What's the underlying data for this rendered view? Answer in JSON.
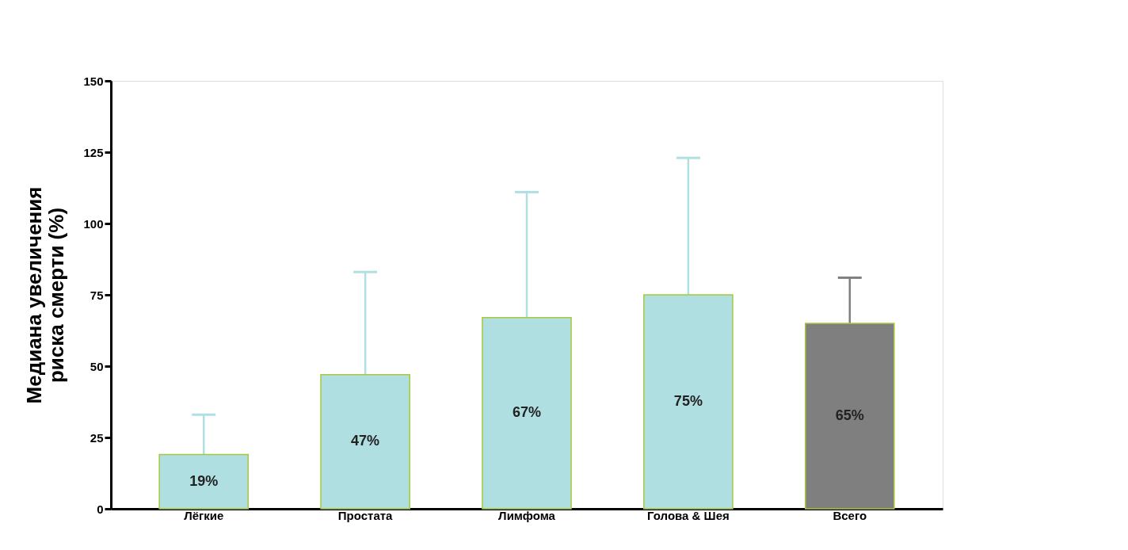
{
  "chart_data": {
    "type": "bar",
    "ylabel": "Медиана увеличения риска смерти (%)",
    "categories": [
      "Лёгкие",
      "Простата",
      "Лимфома",
      "Голова & Шея",
      "Всего"
    ],
    "values": [
      19,
      47,
      67,
      75,
      65
    ],
    "colors": [
      "#b0dfe2",
      "#b0dfe2",
      "#b0dfe2",
      "#b0dfe2",
      "#7f7f7f"
    ],
    "errors": [
      [
        19,
        33
      ],
      [
        47,
        83
      ],
      [
        67,
        111
      ],
      [
        75,
        123
      ],
      [
        65,
        81
      ]
    ],
    "value_labels": [
      "19%",
      "47%",
      "67%",
      "75%",
      "65%"
    ],
    "ylim": [
      0,
      150
    ],
    "yticks": [
      0,
      25,
      50,
      75,
      100,
      125,
      150
    ],
    "grid": false
  }
}
